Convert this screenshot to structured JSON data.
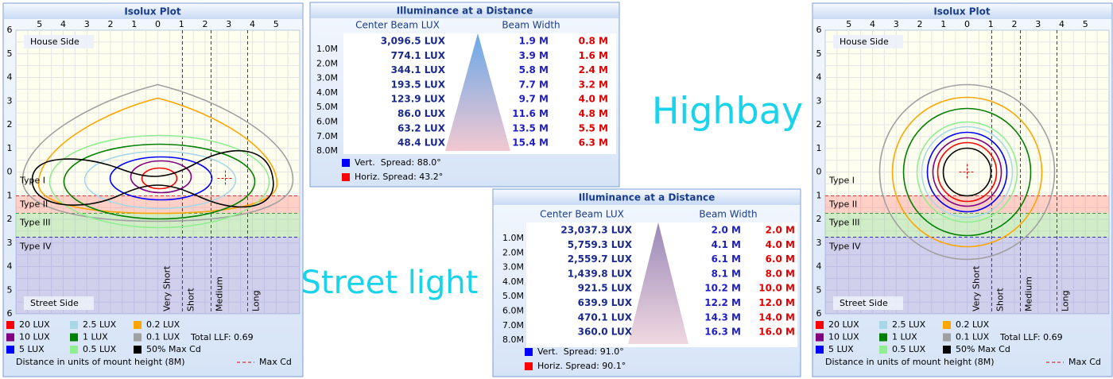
{
  "plots": [
    {
      "title": "Isolux Plot",
      "top_ticks": [
        5,
        4,
        3,
        2,
        1,
        0,
        1,
        2,
        3,
        4,
        5
      ],
      "left_ticks": [
        6,
        5,
        4,
        3,
        2,
        1,
        0,
        1,
        2,
        3,
        4,
        5,
        6
      ],
      "side_labels": [
        "House Side",
        "Street Side"
      ],
      "type_labels": [
        "Type I",
        "Type II",
        "Type III",
        "Type IV"
      ],
      "range_labels": [
        "Very Short",
        "Short",
        "Medium",
        "Long"
      ],
      "legend": [
        {
          "label": "20 LUX",
          "color": "#ff0000"
        },
        {
          "label": "2.5 LUX",
          "color": "#a8d8e8"
        },
        {
          "label": "0.2 LUX",
          "color": "#ffa500"
        },
        {
          "label": "10 LUX",
          "color": "#800080"
        },
        {
          "label": "1 LUX",
          "color": "#008000"
        },
        {
          "label": "0.1 LUX",
          "color": "#a0a0a0"
        },
        {
          "label": "5 LUX",
          "color": "#0000ff"
        },
        {
          "label": "0.5 LUX",
          "color": "#90ee90"
        },
        {
          "label": "50% Max Cd",
          "color": "#000000"
        }
      ],
      "llf": "Total LLF: 0.69",
      "note": "Distance in units of mount height (8M)",
      "max_cd": "Max Cd"
    },
    {
      "title": "Isolux Plot",
      "top_ticks": [
        5,
        4,
        3,
        2,
        1,
        0,
        1,
        2,
        3,
        4,
        5
      ],
      "left_ticks": [
        6,
        5,
        4,
        3,
        2,
        1,
        0,
        1,
        2,
        3,
        4,
        5,
        6
      ],
      "side_labels": [
        "House Side",
        "Street Side"
      ],
      "type_labels": [
        "Type I",
        "Type II",
        "Type III",
        "Type IV"
      ],
      "range_labels": [
        "Very Short",
        "Short",
        "Medium",
        "Long"
      ],
      "legend": [
        {
          "label": "20 LUX",
          "color": "#ff0000"
        },
        {
          "label": "2.5 LUX",
          "color": "#a8d8e8"
        },
        {
          "label": "0.2 LUX",
          "color": "#ffa500"
        },
        {
          "label": "10 LUX",
          "color": "#800080"
        },
        {
          "label": "1 LUX",
          "color": "#008000"
        },
        {
          "label": "0.1 LUX",
          "color": "#a0a0a0"
        },
        {
          "label": "5 LUX",
          "color": "#0000ff"
        },
        {
          "label": "0.5 LUX",
          "color": "#90ee90"
        },
        {
          "label": "50% Max Cd",
          "color": "#000000"
        }
      ],
      "llf": "Total LLF: 0.69",
      "note": "Distance in units of mount height (8M)",
      "max_cd": "Max Cd"
    }
  ],
  "tables": [
    {
      "title": "Illuminance at a Distance",
      "headers": [
        "Center Beam LUX",
        "Beam Width"
      ],
      "distances": [
        "1.0M",
        "2.0M",
        "3.0M",
        "4.0M",
        "5.0M",
        "6.0M",
        "7.0M",
        "8.0M"
      ],
      "rows": [
        [
          "3,096.5 LUX",
          "1.9 M",
          "0.8 M"
        ],
        [
          "774.1 LUX",
          "3.9 M",
          "1.6 M"
        ],
        [
          "344.1 LUX",
          "5.8 M",
          "2.4 M"
        ],
        [
          "193.5 LUX",
          "7.7 M",
          "3.2 M"
        ],
        [
          "123.9 LUX",
          "9.7 M",
          "4.0 M"
        ],
        [
          "86.0 LUX",
          "11.6 M",
          "4.8 M"
        ],
        [
          "63.2 LUX",
          "13.5 M",
          "5.5 M"
        ],
        [
          "48.4 LUX",
          "15.4 M",
          "6.3 M"
        ]
      ],
      "legend": [
        {
          "label": "Vert.  Spread: 88.0°",
          "color": "#0000ff"
        },
        {
          "label": "Horiz. Spread: 43.2°",
          "color": "#ff0000"
        }
      ]
    },
    {
      "title": "Illuminance at a Distance",
      "headers": [
        "Center Beam LUX",
        "Beam Width"
      ],
      "distances": [
        "1.0M",
        "2.0M",
        "3.0M",
        "4.0M",
        "5.0M",
        "6.0M",
        "7.0M",
        "8.0M"
      ],
      "rows": [
        [
          "23,037.3 LUX",
          "2.0 M",
          "2.0 M"
        ],
        [
          "5,759.3 LUX",
          "4.1 M",
          "4.0 M"
        ],
        [
          "2,559.7 LUX",
          "6.1 M",
          "6.0 M"
        ],
        [
          "1,439.8 LUX",
          "8.1 M",
          "8.0 M"
        ],
        [
          "921.5 LUX",
          "10.2 M",
          "10.0 M"
        ],
        [
          "639.9 LUX",
          "12.2 M",
          "12.0 M"
        ],
        [
          "470.1 LUX",
          "14.3 M",
          "14.0 M"
        ],
        [
          "360.0 LUX",
          "16.3 M",
          "16.0 M"
        ]
      ],
      "legend": [
        {
          "label": "Vert.  Spread: 91.0°",
          "color": "#0000ff"
        },
        {
          "label": "Horiz. Spread: 90.1°",
          "color": "#ff0000"
        }
      ]
    }
  ],
  "captions": [
    "Street light",
    "Highbay"
  ]
}
